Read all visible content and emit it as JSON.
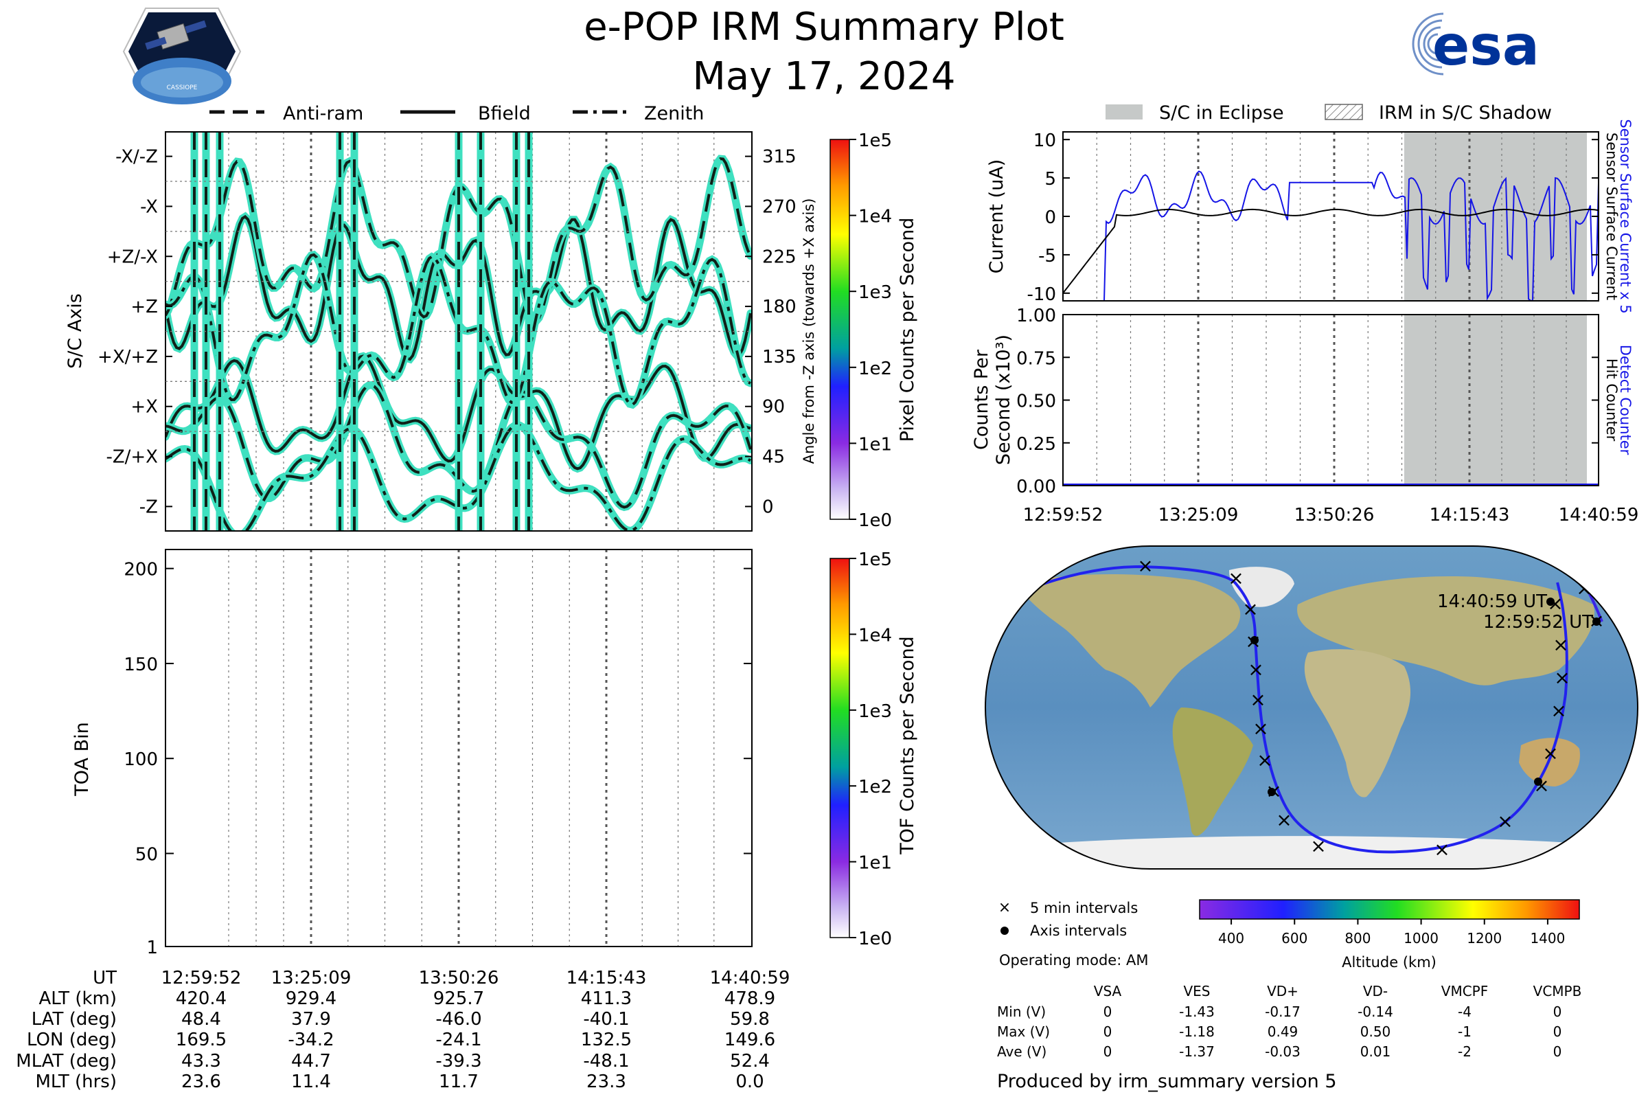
{
  "header": {
    "title": "e-POP IRM Summary Plot",
    "date": "May 17, 2024",
    "esa_logo_text": "esa",
    "cassiope_badge_text": "CASSIOPE"
  },
  "attitude_legend": [
    "Anti-ram",
    "Bfield",
    "Zenith"
  ],
  "eclipse_legend": [
    "S/C in Eclipse",
    "IRM in S/C Shadow"
  ],
  "time_ticks": [
    "12:59:52",
    "13:25:09",
    "13:50:26",
    "14:15:43",
    "14:40:59"
  ],
  "chart_data": [
    {
      "id": "attitude",
      "type": "line",
      "ylabel": "S/C Axis",
      "ylabel_right": "Angle from -Z axis (towards +X axis)",
      "y_axis_labels": [
        "-X/-Z",
        "-X",
        "+Z/-X",
        "+Z",
        "+X/+Z",
        "+X",
        "-Z/+X",
        "-Z"
      ],
      "y_right_ticks": [
        315,
        270,
        225,
        180,
        135,
        90,
        45,
        0
      ],
      "ylim": [
        -22,
        337
      ],
      "series": [
        {
          "name": "Anti-ram",
          "style": "dashed"
        },
        {
          "name": "Bfield",
          "style": "solid"
        },
        {
          "name": "Zenith",
          "style": "dashdot"
        }
      ],
      "colorbar": {
        "label": "Pixel Counts per Second",
        "ticks": [
          "1e0",
          "1e1",
          "1e2",
          "1e3",
          "1e4",
          "1e5"
        ]
      }
    },
    {
      "id": "toa",
      "type": "heatmap",
      "ylabel": "TOA Bin",
      "y_ticks": [
        1,
        50,
        100,
        150,
        200
      ],
      "ylim": [
        1,
        210
      ],
      "colorbar": {
        "label": "TOF Counts per Second",
        "ticks": [
          "1e0",
          "1e1",
          "1e2",
          "1e3",
          "1e4",
          "1e5"
        ]
      }
    },
    {
      "id": "current",
      "type": "line",
      "ylabel": "Current (uA)",
      "y_ticks": [
        10,
        5,
        0,
        -5,
        -10
      ],
      "ylim": [
        -11,
        11
      ],
      "right_labels": [
        "Sensor Surface Current x 5",
        "Sensor Surface Current"
      ],
      "series": [
        {
          "name": "Sensor Surface Current x 5",
          "color": "#1515e6"
        },
        {
          "name": "Sensor Surface Current",
          "color": "#000000"
        }
      ]
    },
    {
      "id": "counts",
      "type": "line",
      "ylabel": "Counts Per Second (x10³)",
      "ylabel_line1": "Counts Per",
      "ylabel_line2": "Second (x10³)",
      "y_ticks": [
        "1.00",
        "0.75",
        "0.50",
        "0.25",
        "0.00"
      ],
      "ylim": [
        0,
        1
      ],
      "right_labels": [
        "Detect Counter",
        "Hit Counter"
      ],
      "series": [
        {
          "name": "Detect Counter",
          "color": "#1515e6",
          "values": [
            0,
            0
          ]
        }
      ]
    }
  ],
  "map": {
    "label_end": "14:40:59 UT",
    "label_start": "12:59:52 UT",
    "legend_cross": "5 min intervals",
    "legend_dot": "Axis intervals",
    "operating_mode": "Operating mode: AM",
    "altitude_label": "Altitude (km)",
    "altitude_ticks": [
      400,
      600,
      800,
      1000,
      1200,
      1400
    ],
    "altitude_range": [
      300,
      1500
    ]
  },
  "info_table": {
    "row_labels": [
      "UT",
      "ALT (km)",
      "LAT (deg)",
      "LON (deg)",
      "MLAT (deg)",
      "MLT (hrs)"
    ],
    "columns": [
      [
        "12:59:52",
        "420.4",
        "48.4",
        "169.5",
        "43.3",
        "23.6"
      ],
      [
        "13:25:09",
        "929.4",
        "37.9",
        "-34.2",
        "44.7",
        "11.4"
      ],
      [
        "13:50:26",
        "925.7",
        "-46.0",
        "-24.1",
        "-39.3",
        "11.7"
      ],
      [
        "14:15:43",
        "411.3",
        "-40.1",
        "132.5",
        "-48.1",
        "23.3"
      ],
      [
        "14:40:59",
        "478.9",
        "59.8",
        "149.6",
        "52.4",
        "0.0"
      ]
    ]
  },
  "voltage_table": {
    "headers": [
      "VSA",
      "VES",
      "VD+",
      "VD-",
      "VMCPF",
      "VCMPB"
    ],
    "rows": [
      {
        "label": "Min (V)",
        "values": [
          "0",
          "-1.43",
          "-0.17",
          "-0.14",
          "-4",
          "0"
        ]
      },
      {
        "label": "Max (V)",
        "values": [
          "0",
          "-1.18",
          "0.49",
          "0.50",
          "-1",
          "0"
        ]
      },
      {
        "label": "Ave (V)",
        "values": [
          "0",
          "-1.37",
          "-0.03",
          "0.01",
          "-2",
          "0"
        ]
      }
    ]
  },
  "footer": "Produced by irm_summary version 5"
}
